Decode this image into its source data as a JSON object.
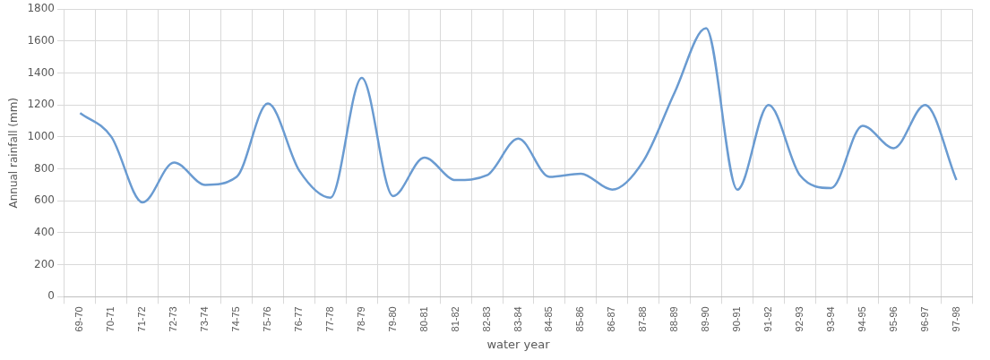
{
  "chart_data": {
    "type": "line",
    "xlabel": "water year",
    "ylabel": "Annual rainfall (mm)",
    "categories": [
      "69-70",
      "70-71",
      "71-72",
      "72-73",
      "73-74",
      "74-75",
      "75-76",
      "76-77",
      "77-78",
      "78-79",
      "79-80",
      "80-81",
      "81-82",
      "82-83",
      "83-84",
      "84-85",
      "85-86",
      "86-87",
      "87-88",
      "88-89",
      "89-90",
      "90-91",
      "91-92",
      "92-93",
      "93-94",
      "94-95",
      "95-96",
      "96-97",
      "97-98"
    ],
    "series": [
      {
        "color": "#6a9bd1",
        "values": [
          1150,
          1000,
          590,
          840,
          700,
          750,
          1210,
          790,
          620,
          1370,
          630,
          870,
          730,
          760,
          990,
          750,
          770,
          670,
          850,
          1280,
          1680,
          670,
          1200,
          760,
          680,
          1070,
          930,
          1200,
          730
        ]
      }
    ],
    "ylim": [
      0,
      1800
    ],
    "yticks": [
      0,
      200,
      400,
      600,
      800,
      1000,
      1200,
      1400,
      1600,
      1800
    ],
    "grid": true,
    "legend": false,
    "marker": "none",
    "line_style": "solid"
  }
}
